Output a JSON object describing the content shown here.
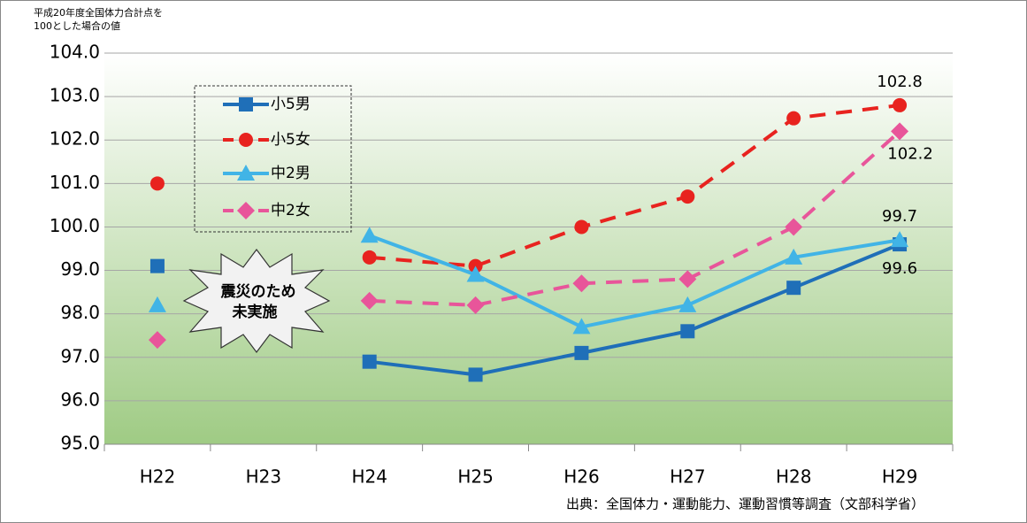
{
  "chart_data": {
    "type": "line",
    "ylabel": [
      "平成20年度全国体力合計点を",
      "100とした場合の値"
    ],
    "categories": [
      "H22",
      "H23",
      "H24",
      "H25",
      "H26",
      "H27",
      "H28",
      "H29"
    ],
    "series": [
      {
        "name": "小5男",
        "color": "#1f6fb8",
        "marker": "square",
        "dashed": false,
        "values": [
          99.1,
          null,
          96.9,
          96.6,
          97.1,
          97.6,
          98.6,
          99.6
        ],
        "value_labels": [
          null,
          null,
          null,
          null,
          null,
          null,
          null,
          "99.6"
        ]
      },
      {
        "name": "小5女",
        "color": "#e8231f",
        "marker": "circle",
        "dashed": true,
        "values": [
          101.0,
          null,
          99.3,
          99.1,
          100.0,
          100.7,
          102.5,
          102.8
        ],
        "value_labels": [
          null,
          null,
          null,
          null,
          null,
          null,
          null,
          "102.8"
        ]
      },
      {
        "name": "中2男",
        "color": "#41b4e6",
        "marker": "triangle",
        "dashed": false,
        "values": [
          98.2,
          null,
          99.8,
          98.9,
          97.7,
          98.2,
          99.3,
          99.7
        ],
        "value_labels": [
          null,
          null,
          null,
          null,
          null,
          null,
          null,
          "99.7"
        ]
      },
      {
        "name": "中2女",
        "color": "#e8559a",
        "marker": "diamond",
        "dashed": true,
        "values": [
          97.4,
          null,
          98.3,
          98.2,
          98.7,
          98.8,
          100.0,
          102.2
        ],
        "value_labels": [
          null,
          null,
          null,
          null,
          null,
          null,
          null,
          "102.2"
        ]
      }
    ],
    "ylim": [
      95,
      104
    ],
    "yticks": [
      {
        "value": 95,
        "label": "95.0"
      },
      {
        "value": 96,
        "label": "96.0"
      },
      {
        "value": 97,
        "label": "97.0"
      },
      {
        "value": 98,
        "label": "98.0"
      },
      {
        "value": 99,
        "label": "99.0"
      },
      {
        "value": 100,
        "label": "100.0"
      },
      {
        "value": 101,
        "label": "101.0"
      },
      {
        "value": 102,
        "label": "102.0"
      },
      {
        "value": 103,
        "label": "103.0"
      },
      {
        "value": 104,
        "label": "104.0"
      }
    ],
    "grid": true,
    "annotation": [
      "震災のため",
      "未実施"
    ],
    "source": "出典：全国体力・運動能力、運動習慣等調査（文部科学省）"
  }
}
